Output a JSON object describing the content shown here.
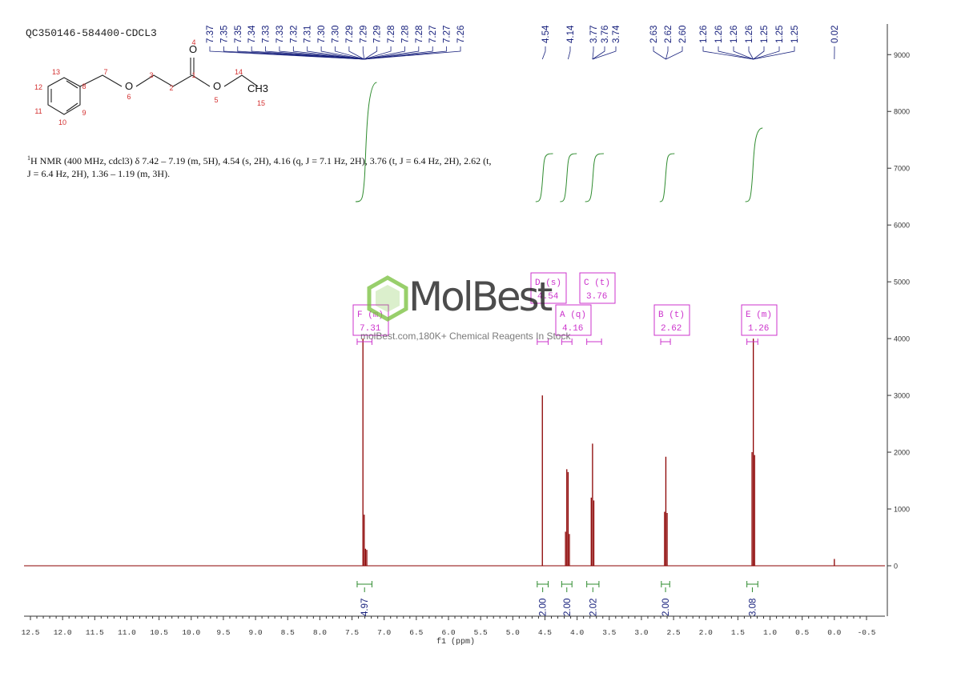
{
  "header": {
    "sample_id": "QC350146-584400-CDCL3",
    "nmr_description": "H NMR (400 MHz, cdcl3) δ 7.42 – 7.19 (m, 5H), 4.54 (s, 2H), 4.16 (q, J = 7.1 Hz, 2H), 3.76 (t, J = 6.4 Hz, 2H), 2.62 (t, J = 6.4 Hz, 2H), 1.36 – 1.19 (m, 3H).",
    "nmr_superscript": "1"
  },
  "structure": {
    "atoms": [
      "O",
      "O",
      "O",
      "CH3"
    ],
    "atom_numbers": [
      "1",
      "2",
      "3",
      "4",
      "5",
      "6",
      "7",
      "8",
      "9",
      "10",
      "11",
      "12",
      "13",
      "14",
      "15"
    ]
  },
  "watermark": {
    "brand": "MolBest",
    "tagline": "molBest.com,180K+ Chemical Reagents In Stock"
  },
  "colors": {
    "spectrum": "#8b0000",
    "peak_labels": "#1a237e",
    "integrals": "#2e8b2e",
    "multiplet_boxes": "#cc33cc",
    "axis": "#333333"
  },
  "chart_data": {
    "type": "line",
    "xlabel": "f1 (ppm)",
    "xlim": [
      12.5,
      -0.5
    ],
    "x_reversed": true,
    "ylim": [
      -900,
      9500
    ],
    "x_ticks": [
      "12.5",
      "12.0",
      "11.5",
      "11.0",
      "10.5",
      "10.0",
      "9.5",
      "9.0",
      "8.5",
      "8.0",
      "7.5",
      "7.0",
      "6.5",
      "6.0",
      "5.5",
      "5.0",
      "4.5",
      "4.0",
      "3.5",
      "3.0",
      "2.5",
      "2.0",
      "1.5",
      "1.0",
      "0.5",
      "0.0",
      "-0.5"
    ],
    "y_ticks": [
      "0",
      "1000",
      "2000",
      "3000",
      "4000",
      "5000",
      "6000",
      "7000",
      "8000",
      "9000"
    ],
    "peaks": [
      {
        "ppm": 7.33,
        "height": 4000
      },
      {
        "ppm": 7.31,
        "height": 900
      },
      {
        "ppm": 7.29,
        "height": 300
      },
      {
        "ppm": 7.27,
        "height": 280
      },
      {
        "ppm": 4.54,
        "height": 3000
      },
      {
        "ppm": 4.18,
        "height": 600
      },
      {
        "ppm": 4.16,
        "height": 1700
      },
      {
        "ppm": 4.14,
        "height": 1650
      },
      {
        "ppm": 4.12,
        "height": 560
      },
      {
        "ppm": 3.78,
        "height": 1200
      },
      {
        "ppm": 3.76,
        "height": 2150
      },
      {
        "ppm": 3.74,
        "height": 1150
      },
      {
        "ppm": 2.64,
        "height": 950
      },
      {
        "ppm": 2.62,
        "height": 1920
      },
      {
        "ppm": 2.6,
        "height": 930
      },
      {
        "ppm": 1.28,
        "height": 2000
      },
      {
        "ppm": 1.26,
        "height": 4000
      },
      {
        "ppm": 1.24,
        "height": 1950
      },
      {
        "ppm": 0.0,
        "height": 120
      }
    ],
    "peak_labels": [
      {
        "group": "aromatic",
        "labels": [
          "7.37",
          "7.35",
          "7.35",
          "7.34",
          "7.33",
          "7.33",
          "7.32",
          "7.31",
          "7.30",
          "7.30",
          "7.29",
          "7.29",
          "7.29",
          "7.28",
          "7.28",
          "7.28",
          "7.27",
          "7.27",
          "7.26"
        ]
      },
      {
        "group": "4.54",
        "labels": [
          "4.54"
        ]
      },
      {
        "group": "4.14",
        "labels": [
          "4.14"
        ]
      },
      {
        "group": "3.76",
        "labels": [
          "3.77",
          "3.76",
          "3.74"
        ]
      },
      {
        "group": "2.62",
        "labels": [
          "2.63",
          "2.62",
          "2.60"
        ]
      },
      {
        "group": "1.26",
        "labels": [
          "1.26",
          "1.26",
          "1.26",
          "1.26",
          "1.25",
          "1.25",
          "1.25"
        ]
      },
      {
        "group": "tms",
        "labels": [
          "0.02"
        ]
      }
    ],
    "multiplets": [
      {
        "letter": "F",
        "type": "m",
        "shift": "7.31",
        "range": [
          7.42,
          7.19
        ]
      },
      {
        "letter": "D",
        "type": "s",
        "shift": "4.54",
        "range": [
          4.62,
          4.45
        ]
      },
      {
        "letter": "A",
        "type": "q",
        "shift": "4.16",
        "range": [
          4.24,
          4.08
        ]
      },
      {
        "letter": "C",
        "type": "t",
        "shift": "3.76",
        "range": [
          3.85,
          3.62
        ]
      },
      {
        "letter": "B",
        "type": "t",
        "shift": "2.62",
        "range": [
          2.7,
          2.55
        ]
      },
      {
        "letter": "E",
        "type": "m",
        "shift": "1.26",
        "range": [
          1.36,
          1.19
        ]
      }
    ],
    "integrals": [
      {
        "value": "4.97",
        "range": [
          7.42,
          7.19
        ]
      },
      {
        "value": "2.00",
        "range": [
          4.62,
          4.45
        ]
      },
      {
        "value": "2.00",
        "range": [
          4.24,
          4.08
        ]
      },
      {
        "value": "2.02",
        "range": [
          3.85,
          3.66
        ]
      },
      {
        "value": "2.00",
        "range": [
          2.69,
          2.56
        ]
      },
      {
        "value": "3.08",
        "range": [
          1.36,
          1.19
        ]
      }
    ]
  }
}
